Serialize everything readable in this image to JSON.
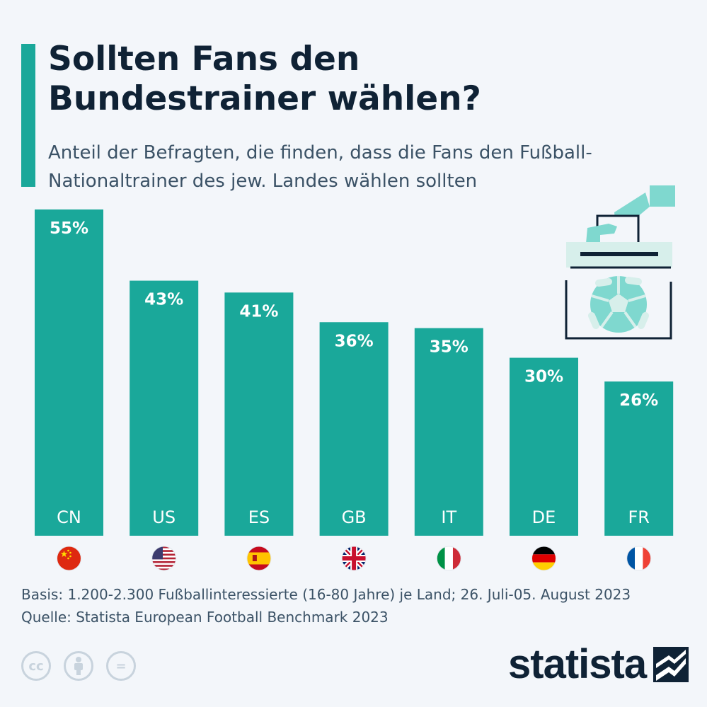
{
  "header": {
    "title_line1": "Sollten Fans den",
    "title_line2": "Bundestrainer wählen?",
    "subtitle_line1": "Anteil der Befragten, die finden, dass die Fans den Fußball-",
    "subtitle_line2": "Nationaltrainer des jew. Landes wählen sollten"
  },
  "colors": {
    "bar": "#1aa89a",
    "title": "#0f2235",
    "text": "#3b5266",
    "accent": "#1aa89a"
  },
  "chart_data": {
    "type": "bar",
    "title": "Sollten Fans den Bundestrainer wählen?",
    "subtitle": "Anteil der Befragten, die finden, dass die Fans den Fußball-Nationaltrainer des jew. Landes wählen sollten",
    "categories": [
      "CN",
      "US",
      "ES",
      "GB",
      "IT",
      "DE",
      "FR"
    ],
    "values": [
      55,
      43,
      41,
      36,
      35,
      30,
      26
    ],
    "value_labels": [
      "55%",
      "43%",
      "41%",
      "36%",
      "35%",
      "30%",
      "26%"
    ],
    "flag_icons": [
      "flag-china-icon",
      "flag-usa-icon",
      "flag-spain-icon",
      "flag-uk-icon",
      "flag-italy-icon",
      "flag-germany-icon",
      "flag-france-icon"
    ],
    "ylim": [
      0,
      55
    ],
    "grid": false,
    "legend": "none",
    "xlabel": "",
    "ylabel": ""
  },
  "footer": {
    "basis": "Basis: 1.200-2.300 Fußballinteressierte (16-80 Jahre) je Land; 26. Juli-05. August 2023",
    "source": "Quelle: Statista European Football Benchmark 2023",
    "cc_icons": [
      "cc-icon",
      "by-attribution-icon",
      "no-derivatives-icon"
    ],
    "cc_labels": [
      "cc",
      "",
      "="
    ],
    "brand": "statista"
  }
}
